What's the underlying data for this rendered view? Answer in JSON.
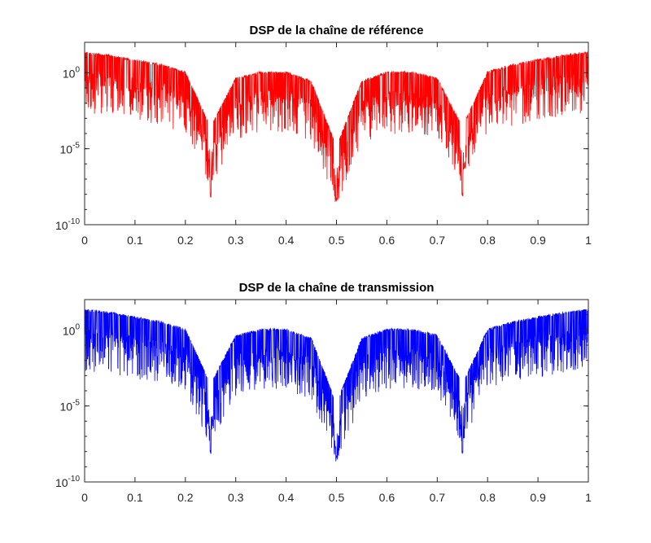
{
  "chart_data": [
    {
      "type": "line",
      "title": "DSP de la chaîne de référence",
      "xlabel": "",
      "ylabel": "",
      "yscale": "log",
      "xlim": [
        0,
        1
      ],
      "ylim_exponents": [
        -10,
        2
      ],
      "x_ticks": [
        "0",
        "0.1",
        "0.2",
        "0.3",
        "0.4",
        "0.5",
        "0.6",
        "0.7",
        "0.8",
        "0.9",
        "1"
      ],
      "y_ticks": [
        {
          "base": "10",
          "exp": "0"
        },
        {
          "base": "10",
          "exp": "-5"
        },
        {
          "base": "10",
          "exp": "-10"
        }
      ],
      "grid": false,
      "color": "#ff0000",
      "nulls_x": [
        0.25,
        0.5,
        0.75
      ],
      "null_depth_exponents": [
        -8.2,
        -8.5,
        -8.2
      ],
      "envelope": {
        "x": [
          0,
          0.05,
          0.1,
          0.15,
          0.2,
          0.25,
          0.3,
          0.35,
          0.4,
          0.45,
          0.5,
          0.55,
          0.6,
          0.65,
          0.7,
          0.75,
          0.8,
          0.85,
          0.9,
          0.95,
          1
        ],
        "log10_peak": [
          1.4,
          1.2,
          0.9,
          0.6,
          0.1,
          -3.5,
          -0.3,
          0.1,
          0.1,
          -0.5,
          -4.8,
          -0.5,
          0.1,
          0.1,
          -0.3,
          -3.5,
          0.1,
          0.6,
          0.9,
          1.2,
          1.4
        ]
      }
    },
    {
      "type": "line",
      "title": "DSP de la chaîne de transmission",
      "xlabel": "",
      "ylabel": "",
      "yscale": "log",
      "xlim": [
        0,
        1
      ],
      "ylim_exponents": [
        -10,
        2
      ],
      "x_ticks": [
        "0",
        "0.1",
        "0.2",
        "0.3",
        "0.4",
        "0.5",
        "0.6",
        "0.7",
        "0.8",
        "0.9",
        "1"
      ],
      "y_ticks": [
        {
          "base": "10",
          "exp": "0"
        },
        {
          "base": "10",
          "exp": "-5"
        },
        {
          "base": "10",
          "exp": "-10"
        }
      ],
      "grid": false,
      "color": "#0000ff",
      "nulls_x": [
        0.25,
        0.5,
        0.75
      ],
      "null_depth_exponents": [
        -8.2,
        -8.5,
        -8.2
      ],
      "envelope": {
        "x": [
          0,
          0.05,
          0.1,
          0.15,
          0.2,
          0.25,
          0.3,
          0.35,
          0.4,
          0.45,
          0.5,
          0.55,
          0.6,
          0.65,
          0.7,
          0.75,
          0.8,
          0.85,
          0.9,
          0.95,
          1
        ],
        "log10_peak": [
          1.4,
          1.2,
          0.9,
          0.6,
          0.1,
          -3.5,
          -0.3,
          0.1,
          0.1,
          -0.5,
          -4.8,
          -0.5,
          0.1,
          0.1,
          -0.3,
          -3.5,
          0.1,
          0.6,
          0.9,
          1.2,
          1.4
        ]
      }
    }
  ]
}
